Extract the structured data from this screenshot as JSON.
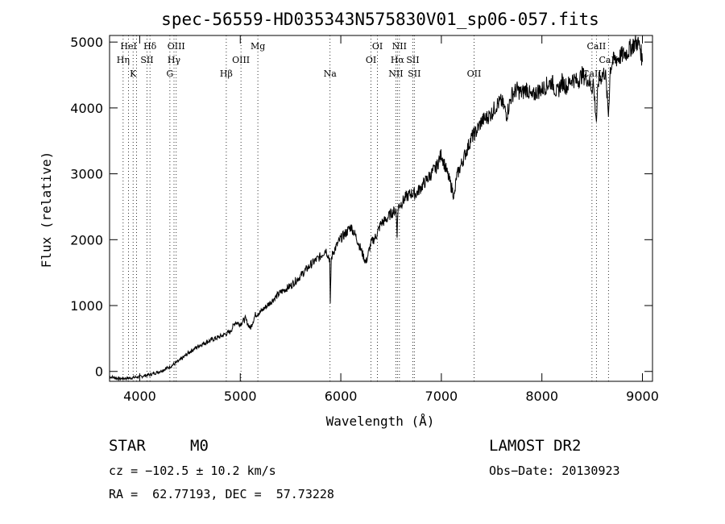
{
  "chart_data": {
    "type": "line",
    "title": "spec-56559-HD035343N575830V01_sp06-057.fits",
    "xlabel": "Wavelength (Å)",
    "ylabel": "Flux (relative)",
    "xlim": [
      3700,
      9100
    ],
    "ylim": [
      -150,
      5100
    ],
    "xticks": [
      "4000",
      "5000",
      "6000",
      "7000",
      "8000",
      "9000"
    ],
    "yticks": [
      "0",
      "1000",
      "2000",
      "3000",
      "4000",
      "5000"
    ],
    "series": [
      {
        "name": "spectrum",
        "x": [
          3700,
          3800,
          3900,
          4000,
          4100,
          4200,
          4300,
          4400,
          4500,
          4600,
          4700,
          4800,
          4900,
          4950,
          5000,
          5050,
          5100,
          5150,
          5200,
          5300,
          5400,
          5500,
          5600,
          5700,
          5800,
          5850,
          5890,
          5895,
          5905,
          5920,
          6000,
          6050,
          6100,
          6150,
          6200,
          6250,
          6300,
          6350,
          6400,
          6450,
          6500,
          6550,
          6560,
          6570,
          6600,
          6650,
          6700,
          6750,
          6800,
          6850,
          6900,
          6950,
          7000,
          7050,
          7100,
          7130,
          7150,
          7200,
          7250,
          7300,
          7350,
          7400,
          7450,
          7500,
          7550,
          7600,
          7650,
          7700,
          7750,
          7800,
          7850,
          7900,
          7950,
          8000,
          8050,
          8100,
          8150,
          8200,
          8250,
          8300,
          8350,
          8400,
          8450,
          8498,
          8510,
          8542,
          8560,
          8600,
          8630,
          8662,
          8680,
          8700,
          8750,
          8800,
          8850,
          8900,
          8950,
          8980,
          9000
        ],
        "y": [
          -80,
          -110,
          -100,
          -80,
          -50,
          0,
          70,
          170,
          300,
          400,
          470,
          530,
          600,
          750,
          720,
          800,
          650,
          860,
          900,
          1050,
          1200,
          1300,
          1450,
          1620,
          1750,
          1850,
          1700,
          1000,
          1700,
          1800,
          2020,
          2100,
          2200,
          2050,
          1850,
          1650,
          1950,
          2050,
          2250,
          2300,
          2400,
          2450,
          2100,
          2500,
          2550,
          2650,
          2700,
          2700,
          2800,
          2900,
          3000,
          3100,
          3300,
          3050,
          2800,
          2650,
          2950,
          3150,
          3350,
          3550,
          3650,
          3800,
          3850,
          3920,
          4050,
          4100,
          3900,
          4200,
          4280,
          4220,
          4300,
          4150,
          4250,
          4280,
          4350,
          4400,
          4220,
          4400,
          4320,
          4450,
          4400,
          4500,
          4450,
          4300,
          4400,
          3800,
          4400,
          4500,
          4550,
          3900,
          4600,
          4700,
          4750,
          4800,
          4850,
          4950,
          5000,
          4900,
          4700
        ]
      }
    ],
    "emission_lines": [
      {
        "x": 3835,
        "label": "Hη",
        "row": 2
      },
      {
        "x": 3889,
        "label": "HeI",
        "row": 1
      },
      {
        "x": 3934,
        "label": "K",
        "row": 3
      },
      {
        "x": 3969,
        "label": "",
        "row": 0
      },
      {
        "x": 4072,
        "label": "SII",
        "row": 2
      },
      {
        "x": 4102,
        "label": "Hδ",
        "row": 1
      },
      {
        "x": 4300,
        "label": "G",
        "row": 3
      },
      {
        "x": 4341,
        "label": "Hγ",
        "row": 2
      },
      {
        "x": 4363,
        "label": "OIII",
        "row": 1
      },
      {
        "x": 4861,
        "label": "Hβ",
        "row": 3
      },
      {
        "x": 5007,
        "label": "OIII",
        "row": 2
      },
      {
        "x": 5175,
        "label": "Mg",
        "row": 1
      },
      {
        "x": 5893,
        "label": "Na",
        "row": 3
      },
      {
        "x": 6300,
        "label": "OI",
        "row": 2
      },
      {
        "x": 6364,
        "label": "OI",
        "row": 1
      },
      {
        "x": 6548,
        "label": "NII",
        "row": 3
      },
      {
        "x": 6563,
        "label": "Hα",
        "row": 2
      },
      {
        "x": 6583,
        "label": "NII",
        "row": 1
      },
      {
        "x": 6716,
        "label": "SII",
        "row": 2
      },
      {
        "x": 6731,
        "label": "SII",
        "row": 3
      },
      {
        "x": 7325,
        "label": "OII",
        "row": 3
      },
      {
        "x": 8498,
        "label": "CaII",
        "row": 3
      },
      {
        "x": 8542,
        "label": "CaII",
        "row": 1
      },
      {
        "x": 8662,
        "label": "CaII",
        "row": 2
      }
    ]
  },
  "info": {
    "object_class": "STAR",
    "subclass": "M0",
    "survey": "LAMOST DR2",
    "redshift_text": "cz = −102.5 ± 10.2 km/s",
    "obs_date": "Obs−Date: 20130923",
    "coords": "RA =  62.77193, DEC =  57.73228"
  }
}
